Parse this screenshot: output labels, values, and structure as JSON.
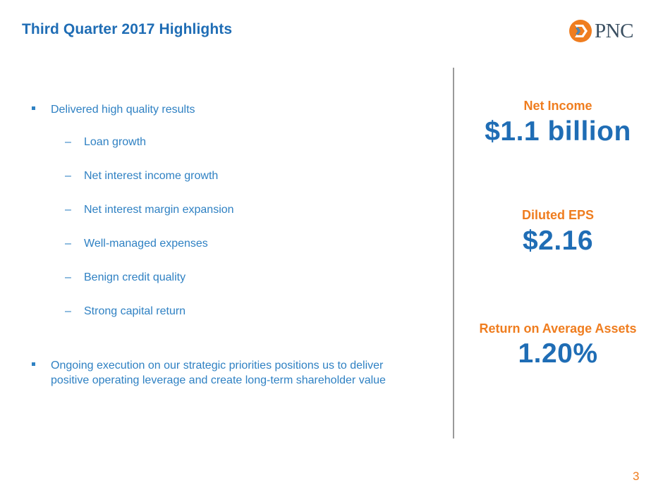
{
  "header": {
    "title": "Third Quarter 2017 Highlights",
    "logo_text": "PNC"
  },
  "bullets": [
    {
      "text": "Delivered high quality results",
      "subitems": [
        "Loan growth",
        "Net interest income growth",
        "Net interest margin expansion",
        "Well-managed expenses",
        "Benign credit quality",
        "Strong capital return"
      ]
    },
    {
      "lines": [
        "Ongoing execution on our strategic priorities positions us to deliver",
        "positive operating leverage and create long-term shareholder value"
      ]
    }
  ],
  "sub_dash": "–",
  "metrics": [
    {
      "label": "Net Income",
      "value": "$1.1 billion"
    },
    {
      "label": "Diluted EPS",
      "value": "$2.16"
    },
    {
      "label": "Return on Average Assets",
      "value": "1.20%"
    }
  ],
  "footer": {
    "page_number": "3"
  },
  "colors": {
    "title_blue": "#1f6db5",
    "text_blue": "#2f81c3",
    "accent_orange": "#ef7d1f",
    "logo_gray": "#3a4f61",
    "divider_gray": "#9a9a9a"
  }
}
